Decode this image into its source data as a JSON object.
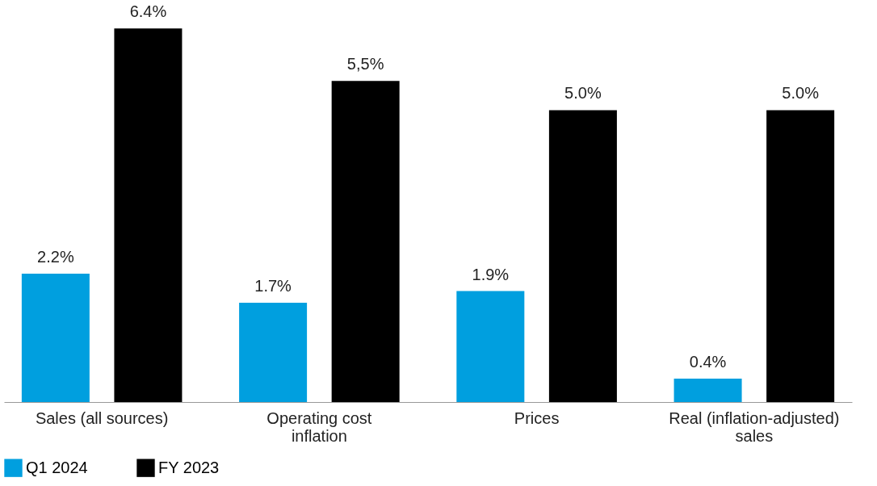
{
  "chart_data": {
    "type": "bar",
    "categories": [
      "Sales (all sources)",
      "Operating cost\ninflation",
      "Prices",
      "Real (inflation-adjusted)\nsales"
    ],
    "series": [
      {
        "name": "Q1 2024",
        "color": "#009fdf",
        "values": [
          2.2,
          1.7,
          1.9,
          0.4
        ],
        "value_labels": [
          "2.2%",
          "1.7%",
          "1.9%",
          "0.4%"
        ]
      },
      {
        "name": "FY 2023",
        "color": "#000000",
        "values": [
          6.4,
          5.5,
          5.0,
          5.0
        ],
        "value_labels": [
          "6.4%",
          "5,5%",
          "5.0%",
          "5.0%"
        ]
      }
    ],
    "legend": "bottom",
    "grid": false
  }
}
